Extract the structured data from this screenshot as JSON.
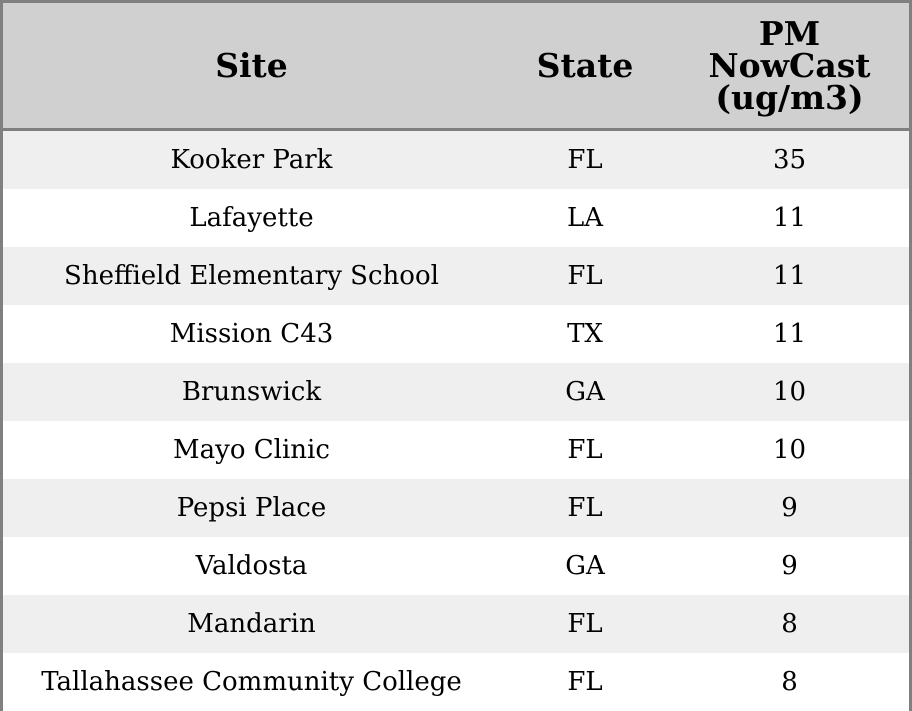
{
  "chart_data": {
    "type": "table",
    "columns": [
      "Site",
      "State",
      "PM NowCast (ug/m3)"
    ],
    "header_lines": {
      "site": [
        "Site"
      ],
      "state": [
        "State"
      ],
      "pm": [
        "PM",
        "NowCast",
        "(ug/m3)"
      ]
    },
    "rows": [
      {
        "site": "Kooker Park",
        "state": "FL",
        "pm": "35"
      },
      {
        "site": "Lafayette",
        "state": "LA",
        "pm": "11"
      },
      {
        "site": "Sheffield Elementary School",
        "state": "FL",
        "pm": "11"
      },
      {
        "site": "Mission C43",
        "state": "TX",
        "pm": "11"
      },
      {
        "site": "Brunswick",
        "state": "GA",
        "pm": "10"
      },
      {
        "site": "Mayo Clinic",
        "state": "FL",
        "pm": "10"
      },
      {
        "site": "Pepsi Place",
        "state": "FL",
        "pm": "9"
      },
      {
        "site": "Valdosta",
        "state": "GA",
        "pm": "9"
      },
      {
        "site": "Mandarin",
        "state": "FL",
        "pm": "8"
      },
      {
        "site": "Tallahassee Community College",
        "state": "FL",
        "pm": "8"
      }
    ]
  },
  "colors": {
    "header_bg": "#d0d0d0",
    "row_odd_bg": "#efefef",
    "row_even_bg": "#ffffff",
    "border": "#808080"
  }
}
